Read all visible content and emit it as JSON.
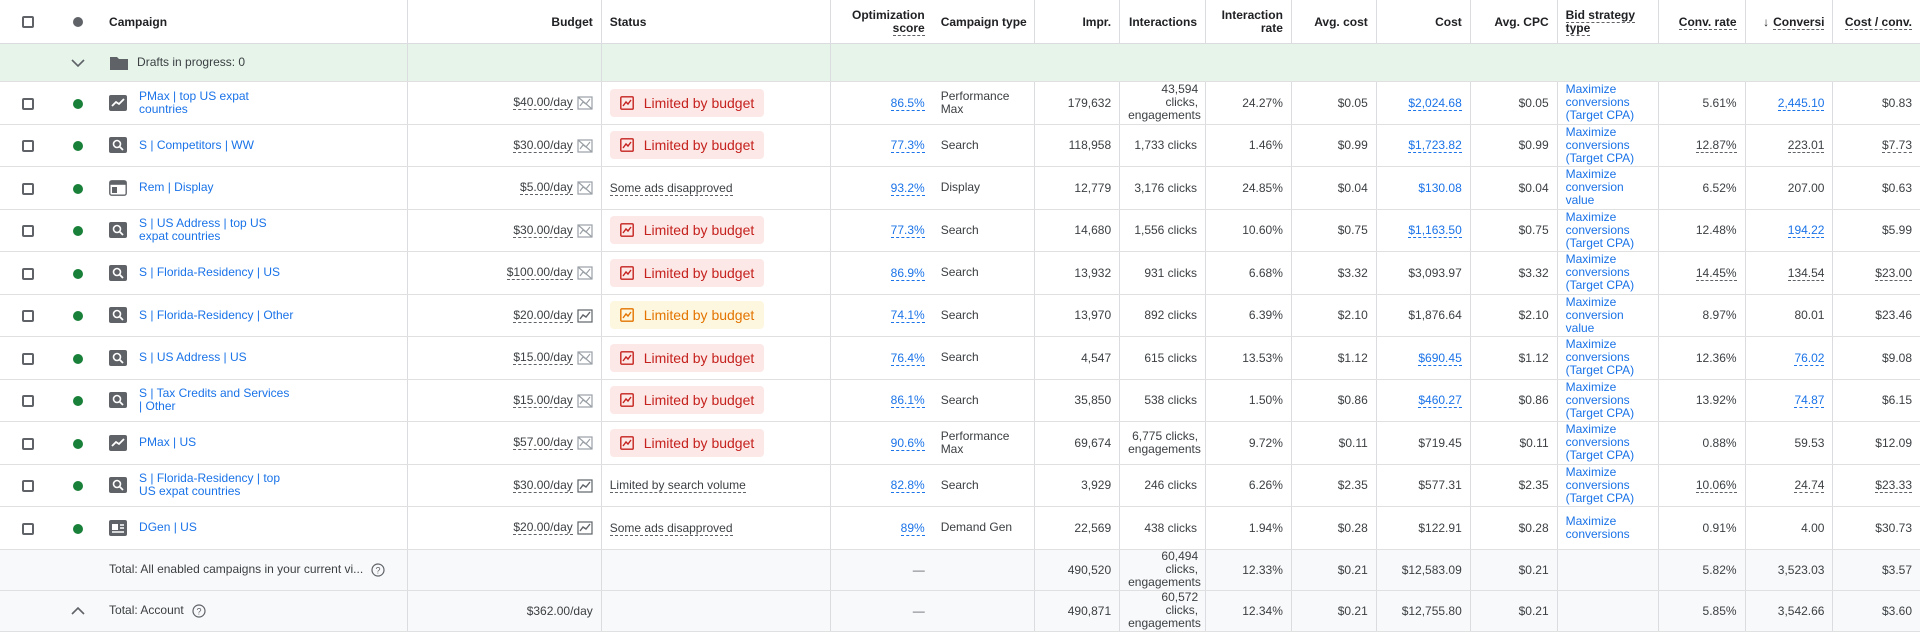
{
  "columns": {
    "campaign": "Campaign",
    "budget": "Budget",
    "status": "Status",
    "opt_line1": "Optimization",
    "opt_line2": "score",
    "campaign_type": "Campaign type",
    "impr": "Impr.",
    "interactions": "Interactions",
    "irate_line1": "Interaction",
    "irate_line2": "rate",
    "avg_cost": "Avg. cost",
    "cost": "Cost",
    "avg_cpc": "Avg. CPC",
    "bid_line1": "Bid strategy",
    "bid_line2": "type",
    "conv_rate": "Conv. rate",
    "conversions": "Conversi",
    "cost_conv": "Cost / conv."
  },
  "drafts": {
    "label": "Drafts in progress: 0"
  },
  "rows": [
    {
      "campaign": "PMax | top US expat countries",
      "type_icon": "pmax-icon",
      "budget": "$40.00/day",
      "status": "Limited by budget",
      "status_kind": "error",
      "opt": "86.5%",
      "ctype": "Performance Max",
      "impr": "179,632",
      "interactions": "43,594 clicks, engagements",
      "irate": "24.27%",
      "avg_cost": "$0.05",
      "cost": "$2,024.68",
      "cost_link": true,
      "avg_cpc": "$0.05",
      "bid": "Maximize conversions (Target CPA)",
      "conv_rate": "5.61%",
      "conv_rate_ul": false,
      "conv": "2,445.10",
      "conv_link": true,
      "cost_conv": "$0.83",
      "cost_conv_ul": false
    },
    {
      "campaign": "S | Competitors | WW",
      "type_icon": "search-icon",
      "budget": "$30.00/day",
      "status": "Limited by budget",
      "status_kind": "error",
      "opt": "77.3%",
      "ctype": "Search",
      "impr": "118,958",
      "interactions": "1,733 clicks",
      "irate": "1.46%",
      "avg_cost": "$0.99",
      "cost": "$1,723.82",
      "cost_link": true,
      "avg_cpc": "$0.99",
      "bid": "Maximize conversions (Target CPA)",
      "conv_rate": "12.87%",
      "conv_rate_ul": true,
      "conv": "223.01",
      "conv_link": false,
      "conv_ul": true,
      "cost_conv": "$7.73",
      "cost_conv_ul": true
    },
    {
      "campaign": "Rem | Display",
      "type_icon": "display-icon",
      "budget": "$5.00/day",
      "status": "Some ads disapproved",
      "status_kind": "plain",
      "opt": "93.2%",
      "ctype": "Display",
      "impr": "12,779",
      "interactions": "3,176 clicks",
      "irate": "24.85%",
      "avg_cost": "$0.04",
      "cost": "$130.08",
      "cost_link": true,
      "cost_plain_link": true,
      "avg_cpc": "$0.04",
      "bid": "Maximize conversion value",
      "conv_rate": "6.52%",
      "conv_rate_ul": false,
      "conv": "207.00",
      "conv_link": false,
      "cost_conv": "$0.63",
      "cost_conv_ul": false
    },
    {
      "campaign": "S | US Address | top US expat countries",
      "type_icon": "search-icon",
      "budget": "$30.00/day",
      "status": "Limited by budget",
      "status_kind": "error",
      "opt": "77.3%",
      "ctype": "Search",
      "impr": "14,680",
      "interactions": "1,556 clicks",
      "irate": "10.60%",
      "avg_cost": "$0.75",
      "cost": "$1,163.50",
      "cost_link": true,
      "avg_cpc": "$0.75",
      "bid": "Maximize conversions (Target CPA)",
      "conv_rate": "12.48%",
      "conv_rate_ul": false,
      "conv": "194.22",
      "conv_link": true,
      "cost_conv": "$5.99",
      "cost_conv_ul": false
    },
    {
      "campaign": "S | Florida-Residency | US",
      "type_icon": "search-icon",
      "budget": "$100.00/day",
      "status": "Limited by budget",
      "status_kind": "error",
      "opt": "86.9%",
      "ctype": "Search",
      "impr": "13,932",
      "interactions": "931 clicks",
      "irate": "6.68%",
      "avg_cost": "$3.32",
      "cost": "$3,093.97",
      "cost_link": false,
      "avg_cpc": "$3.32",
      "bid": "Maximize conversions (Target CPA)",
      "conv_rate": "14.45%",
      "conv_rate_ul": true,
      "conv": "134.54",
      "conv_link": false,
      "conv_ul": true,
      "cost_conv": "$23.00",
      "cost_conv_ul": true
    },
    {
      "campaign": "S | Florida-Residency | Other",
      "type_icon": "search-icon",
      "budget": "$20.00/day",
      "status": "Limited by budget",
      "status_kind": "warn",
      "opt": "74.1%",
      "ctype": "Search",
      "impr": "13,970",
      "interactions": "892 clicks",
      "irate": "6.39%",
      "avg_cost": "$2.10",
      "cost": "$1,876.64",
      "cost_link": false,
      "avg_cpc": "$2.10",
      "bid": "Maximize conversion value",
      "conv_rate": "8.97%",
      "conv_rate_ul": false,
      "conv": "80.01",
      "conv_link": false,
      "cost_conv": "$23.46",
      "cost_conv_ul": false
    },
    {
      "campaign": "S | US Address | US",
      "type_icon": "search-icon",
      "budget": "$15.00/day",
      "status": "Limited by budget",
      "status_kind": "error",
      "opt": "76.4%",
      "ctype": "Search",
      "impr": "4,547",
      "interactions": "615 clicks",
      "irate": "13.53%",
      "avg_cost": "$1.12",
      "cost": "$690.45",
      "cost_link": true,
      "avg_cpc": "$1.12",
      "bid": "Maximize conversions (Target CPA)",
      "conv_rate": "12.36%",
      "conv_rate_ul": false,
      "conv": "76.02",
      "conv_link": true,
      "cost_conv": "$9.08",
      "cost_conv_ul": false
    },
    {
      "campaign": "S | Tax Credits and Services | Other",
      "type_icon": "search-icon",
      "budget": "$15.00/day",
      "status": "Limited by budget",
      "status_kind": "error",
      "opt": "86.1%",
      "ctype": "Search",
      "impr": "35,850",
      "interactions": "538 clicks",
      "irate": "1.50%",
      "avg_cost": "$0.86",
      "cost": "$460.27",
      "cost_link": true,
      "avg_cpc": "$0.86",
      "bid": "Maximize conversions (Target CPA)",
      "conv_rate": "13.92%",
      "conv_rate_ul": false,
      "conv": "74.87",
      "conv_link": true,
      "cost_conv": "$6.15",
      "cost_conv_ul": false
    },
    {
      "campaign": "PMax | US",
      "type_icon": "pmax-icon",
      "budget": "$57.00/day",
      "status": "Limited by budget",
      "status_kind": "error",
      "opt": "90.6%",
      "ctype": "Performance Max",
      "impr": "69,674",
      "interactions": "6,775 clicks, engagements",
      "irate": "9.72%",
      "avg_cost": "$0.11",
      "cost": "$719.45",
      "cost_link": false,
      "avg_cpc": "$0.11",
      "bid": "Maximize conversions (Target CPA)",
      "conv_rate": "0.88%",
      "conv_rate_ul": false,
      "conv": "59.53",
      "conv_link": false,
      "cost_conv": "$12.09",
      "cost_conv_ul": false
    },
    {
      "campaign": "S | Florida-Residency | top US expat countries",
      "type_icon": "search-icon",
      "budget": "$30.00/day",
      "status": "Limited by search volume",
      "status_kind": "plain",
      "opt": "82.8%",
      "ctype": "Search",
      "impr": "3,929",
      "interactions": "246 clicks",
      "irate": "6.26%",
      "avg_cost": "$2.35",
      "cost": "$577.31",
      "cost_link": false,
      "avg_cpc": "$2.35",
      "bid": "Maximize conversions (Target CPA)",
      "conv_rate": "10.06%",
      "conv_rate_ul": true,
      "conv": "24.74",
      "conv_link": false,
      "conv_ul": true,
      "cost_conv": "$23.33",
      "cost_conv_ul": true
    },
    {
      "campaign": "DGen | US",
      "type_icon": "demand-gen-icon",
      "budget": "$20.00/day",
      "status": "Some ads disapproved",
      "status_kind": "plain",
      "opt": "89%",
      "ctype": "Demand Gen",
      "impr": "22,569",
      "interactions": "438 clicks",
      "irate": "1.94%",
      "avg_cost": "$0.28",
      "cost": "$122.91",
      "cost_link": false,
      "avg_cpc": "$0.28",
      "bid": "Maximize conversions",
      "conv_rate": "0.91%",
      "conv_rate_ul": false,
      "conv": "4.00",
      "conv_link": false,
      "cost_conv": "$30.73",
      "cost_conv_ul": false
    }
  ],
  "totals": [
    {
      "label": "Total: All enabled campaigns in your current vi...",
      "budget": "",
      "opt": "—",
      "impr": "490,520",
      "interactions": "60,494 clicks, engagements",
      "irate": "12.33%",
      "avg_cost": "$0.21",
      "cost": "$12,583.09",
      "avg_cpc": "$0.21",
      "conv_rate": "5.82%",
      "conv": "3,523.03",
      "cost_conv": "$3.57"
    },
    {
      "label": "Total: Account",
      "budget": "$362.00/day",
      "opt": "—",
      "impr": "490,871",
      "interactions": "60,572 clicks, engagements",
      "irate": "12.34%",
      "avg_cost": "$0.21",
      "cost": "$12,755.80",
      "avg_cpc": "$0.21",
      "conv_rate": "5.85%",
      "conv": "3,542.66",
      "cost_conv": "$3.60"
    }
  ],
  "colors": {
    "link": "#1a73e8",
    "enabled": "#188038",
    "error_bg": "#fce8e6",
    "error_text": "#c5221f",
    "warn_bg": "#fef7e0",
    "warn_text": "#e37400",
    "drafts_bg": "#e6f4ea"
  }
}
